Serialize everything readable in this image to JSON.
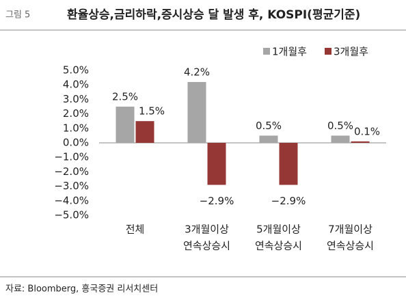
{
  "figure_label": "그림 5",
  "chart_data": {
    "type": "bar",
    "title": "환율상승,금리하락,증시상승 달 발생 후, KOSPI(평균기준)",
    "categories": [
      [
        "전체"
      ],
      [
        "3개월이상",
        "연속상승시"
      ],
      [
        "5개월이상",
        "연속상승시"
      ],
      [
        "7개월이상",
        "연속상승시"
      ]
    ],
    "series": [
      {
        "name": "1개월후",
        "color": "#a6a6a6",
        "values": [
          2.5,
          4.2,
          0.5,
          0.5
        ],
        "value_labels": [
          "2.5%",
          "4.2%",
          "0.5%",
          "0.5%"
        ]
      },
      {
        "name": "3개월후",
        "color": "#953735",
        "values": [
          1.5,
          -2.9,
          -2.9,
          0.1
        ],
        "value_labels": [
          "1.5%",
          "−2.9%",
          "−2.9%",
          "0.1%"
        ]
      }
    ],
    "ylim": [
      -5,
      5
    ],
    "yticks": [
      {
        "value": 5,
        "label": "5.0%"
      },
      {
        "value": 4,
        "label": "4.0%"
      },
      {
        "value": 3,
        "label": "3.0%"
      },
      {
        "value": 2,
        "label": "2.0%"
      },
      {
        "value": 1,
        "label": "1.0%"
      },
      {
        "value": 0,
        "label": "0.0%"
      },
      {
        "value": -1,
        "label": "−1.0%"
      },
      {
        "value": -2,
        "label": "−2.0%"
      },
      {
        "value": -3,
        "label": "−3.0%"
      },
      {
        "value": -4,
        "label": "−4.0%"
      },
      {
        "value": -5,
        "label": "−5.0%"
      }
    ],
    "legend": "top-right"
  },
  "source": "자료: Bloomberg, 흥국증권 리서치센터"
}
